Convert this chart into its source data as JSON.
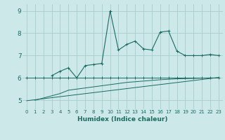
{
  "title": "",
  "xlabel": "Humidex (Indice chaleur)",
  "background_color": "#cce8e8",
  "grid_color": "#aacccc",
  "line_color": "#1a6b60",
  "xlim": [
    -0.5,
    23.5
  ],
  "ylim": [
    4.6,
    9.3
  ],
  "yticks": [
    5,
    6,
    7,
    8,
    9
  ],
  "xticks": [
    0,
    1,
    2,
    3,
    4,
    5,
    6,
    7,
    8,
    9,
    10,
    11,
    12,
    13,
    14,
    15,
    16,
    17,
    18,
    19,
    20,
    21,
    22,
    23
  ],
  "series1_x": [
    0,
    1,
    2,
    3,
    4,
    5,
    6,
    7,
    8,
    9,
    10,
    11,
    12,
    13,
    14,
    15,
    16,
    17,
    18,
    19,
    20,
    21,
    22,
    23
  ],
  "series1_y": [
    6.0,
    6.0,
    6.0,
    6.0,
    6.0,
    6.0,
    6.0,
    6.0,
    6.0,
    6.0,
    6.0,
    6.0,
    6.0,
    6.0,
    6.0,
    6.0,
    6.0,
    6.0,
    6.0,
    6.0,
    6.0,
    6.0,
    6.0,
    6.0
  ],
  "series2_x": [
    0,
    23
  ],
  "series2_y": [
    4.98,
    6.02
  ],
  "series3_x": [
    1,
    2,
    3,
    4,
    5,
    6,
    7,
    8,
    9,
    10,
    11,
    12,
    13,
    14,
    15,
    16,
    17,
    18,
    19,
    20,
    21,
    22,
    23
  ],
  "series3_y": [
    5.0,
    5.1,
    5.2,
    5.3,
    5.45,
    5.5,
    5.55,
    5.6,
    5.65,
    5.7,
    5.75,
    5.8,
    5.83,
    5.86,
    5.89,
    5.92,
    5.94,
    5.96,
    5.97,
    5.98,
    5.99,
    6.0,
    6.0
  ],
  "series4_x": [
    3,
    4,
    5,
    6,
    7,
    8,
    9,
    10,
    11,
    12,
    13,
    14,
    15,
    16,
    17,
    18,
    19,
    20,
    21,
    22,
    23
  ],
  "series4_y": [
    6.1,
    6.3,
    6.45,
    6.0,
    6.55,
    6.6,
    6.65,
    9.0,
    7.25,
    7.5,
    7.65,
    7.3,
    7.25,
    8.05,
    8.1,
    7.2,
    7.0,
    7.0,
    7.0,
    7.05,
    7.0
  ]
}
